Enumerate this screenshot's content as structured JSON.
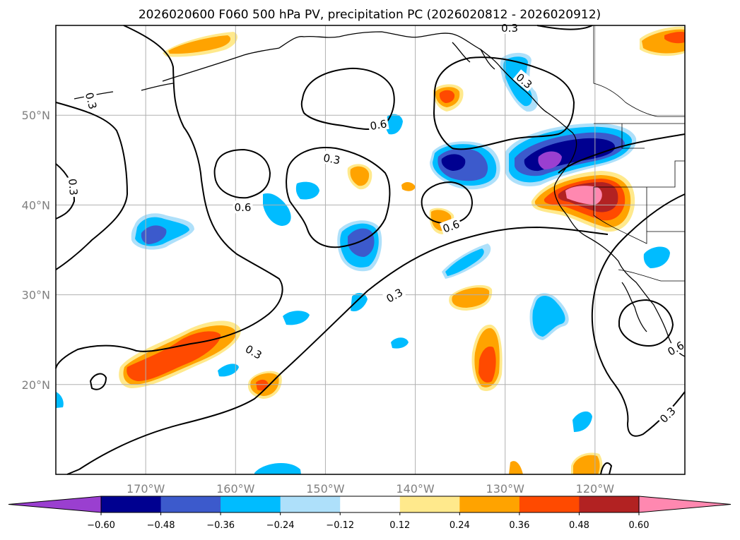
{
  "title": "2026020600 F060 500 hPa PV, precipitation PC (2026020812 - 2026020912)",
  "colors": {
    "neg_060": "#9a3fd0",
    "neg_048": "#000090",
    "neg_036": "#3c5acc",
    "neg_024": "#00bcff",
    "neg_012": "#aee0fa",
    "zero": "#ffffff",
    "pos_012": "#ffe98c",
    "pos_024": "#ffa300",
    "pos_036": "#ff4a00",
    "pos_048": "#b22222",
    "pos_060": "#ff88b0",
    "grid": "#b0b0b0",
    "coast": "#000000"
  },
  "map": {
    "lon_range": [
      -180,
      -110
    ],
    "lat_range": [
      10,
      60
    ],
    "lon_ticks": [
      {
        "value": -170,
        "label": "170°W"
      },
      {
        "value": -160,
        "label": "160°W"
      },
      {
        "value": -150,
        "label": "150°W"
      },
      {
        "value": -140,
        "label": "140°W"
      },
      {
        "value": -130,
        "label": "130°W"
      },
      {
        "value": -120,
        "label": "120°W"
      }
    ],
    "lat_ticks": [
      {
        "value": 20,
        "label": "20°N"
      },
      {
        "value": 30,
        "label": "30°N"
      },
      {
        "value": 40,
        "label": "40°N"
      },
      {
        "value": 50,
        "label": "50°N"
      }
    ],
    "contour_labels": [
      {
        "id": "c1",
        "text": "0.3",
        "lon": -176.1,
        "lat": 51.6,
        "rot": 75
      },
      {
        "id": "c2",
        "text": "0.3",
        "lon": -178.1,
        "lat": 42.0,
        "rot": 85
      },
      {
        "id": "c3",
        "text": "0.3",
        "lon": -149.3,
        "lat": 45.1,
        "rot": 10
      },
      {
        "id": "c4",
        "text": "0.6",
        "lon": -159.2,
        "lat": 39.7,
        "rot": 0
      },
      {
        "id": "c5",
        "text": "0.6",
        "lon": -144.1,
        "lat": 48.9,
        "rot": -10
      },
      {
        "id": "c6",
        "text": "0.3",
        "lon": -129.5,
        "lat": 59.7,
        "rot": 0
      },
      {
        "id": "c7",
        "text": "0.3",
        "lon": -127.9,
        "lat": 53.8,
        "rot": 40
      },
      {
        "id": "c8",
        "text": "0.6",
        "lon": -136.0,
        "lat": 37.6,
        "rot": -20
      },
      {
        "id": "c9",
        "text": "0.3",
        "lon": -142.3,
        "lat": 29.9,
        "rot": -30
      },
      {
        "id": "c10",
        "text": "0.3",
        "lon": -158.0,
        "lat": 23.6,
        "rot": 30
      },
      {
        "id": "c11",
        "text": "0.6",
        "lon": -111.0,
        "lat": 24.0,
        "rot": -30
      },
      {
        "id": "c12",
        "text": "0.3",
        "lon": -111.9,
        "lat": 16.6,
        "rot": -45
      }
    ]
  },
  "colorbar": {
    "ticks": [
      "−0.60",
      "−0.48",
      "−0.36",
      "−0.24",
      "−0.12",
      "0.12",
      "0.24",
      "0.36",
      "0.48",
      "0.60"
    ],
    "bins": [
      "neg_060",
      "neg_048",
      "neg_036",
      "neg_024",
      "neg_012",
      "zero",
      "pos_012",
      "pos_024",
      "pos_036",
      "pos_048",
      "pos_060"
    ]
  }
}
